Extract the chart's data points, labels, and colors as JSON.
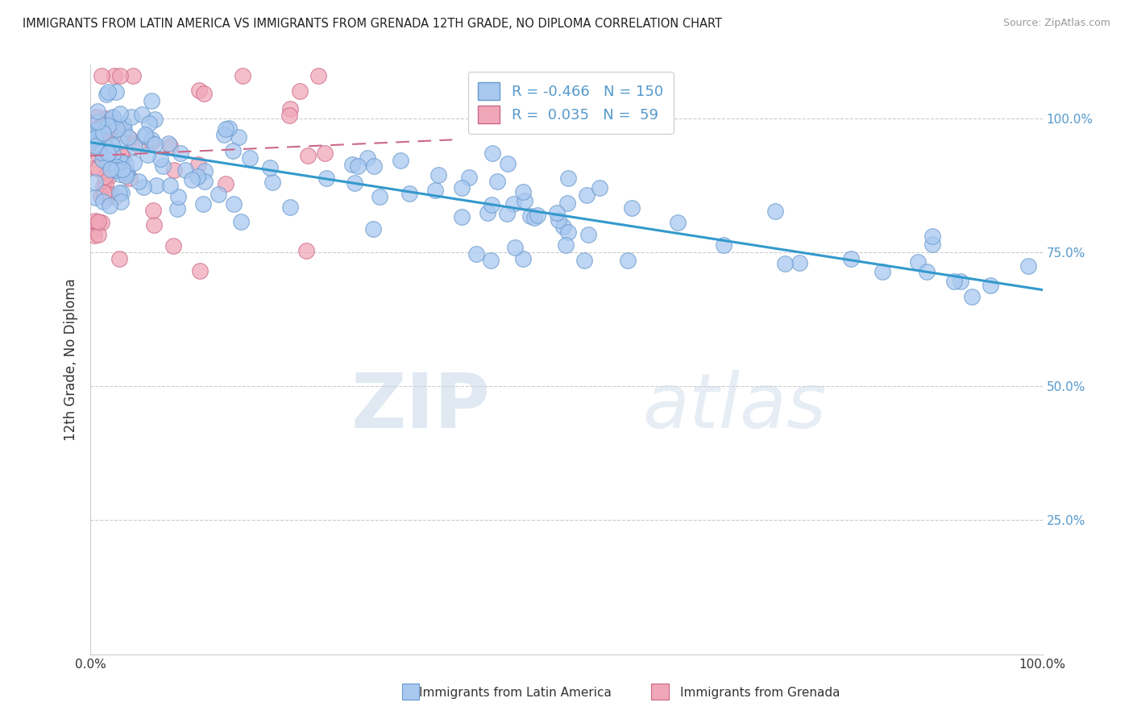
{
  "title": "IMMIGRANTS FROM LATIN AMERICA VS IMMIGRANTS FROM GRENADA 12TH GRADE, NO DIPLOMA CORRELATION CHART",
  "source": "Source: ZipAtlas.com",
  "xlabel_bottom": [
    "Immigrants from Latin America",
    "Immigrants from Grenada"
  ],
  "ylabel": "12th Grade, No Diploma",
  "watermark_zip": "ZIP",
  "watermark_atlas": "atlas",
  "xlim": [
    0.0,
    1.0
  ],
  "ylim": [
    0.0,
    1.1
  ],
  "blue_color": "#a8c8f0",
  "blue_edge": "#6699cc",
  "pink_color": "#f0a8b8",
  "pink_edge": "#cc6688",
  "trend_blue": "#3399cc",
  "trend_pink": "#cc6688",
  "legend_R_blue": "-0.466",
  "legend_N_blue": "150",
  "legend_R_pink": "0.035",
  "legend_N_pink": "59",
  "blue_trend_x0": 0.0,
  "blue_trend_y0": 0.955,
  "blue_trend_x1": 1.0,
  "blue_trend_y1": 0.68,
  "pink_trend_x0": 0.0,
  "pink_trend_y0": 0.93,
  "pink_trend_x1": 0.38,
  "pink_trend_y1": 0.96,
  "background_color": "#ffffff",
  "grid_color": "#cccccc",
  "tick_color": "#5599cc",
  "label_color": "#333333"
}
